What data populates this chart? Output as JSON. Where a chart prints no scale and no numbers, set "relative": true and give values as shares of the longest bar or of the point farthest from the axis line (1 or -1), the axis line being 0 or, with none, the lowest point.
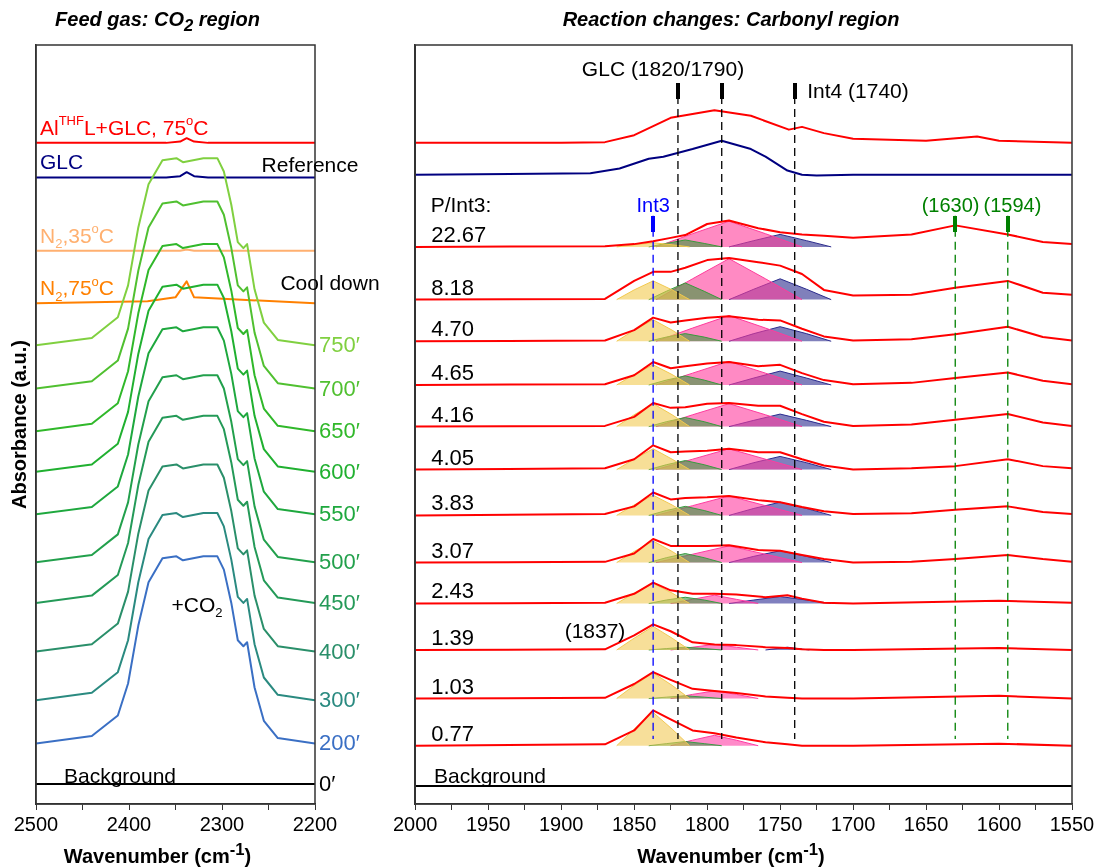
{
  "chart_data": [
    {
      "type": "line",
      "relative": true,
      "title": "Feed gas: CO$_{2}$ region",
      "xlabel": "Wavenumber (cm$^{-1}$)",
      "ylabel": "Absorbance (a.u.)",
      "xlim": [
        2500,
        2200
      ],
      "xticks": [
        2500,
        {
          "value": 2450,
          "label": null
        },
        2400,
        {
          "value": 2350,
          "label": null
        },
        2300,
        {
          "value": 2250,
          "label": null
        },
        2200
      ],
      "annotations": [
        "Reference",
        "Cool down",
        "+CO$_{2}$",
        "Background"
      ],
      "series": [
        {
          "type": "line",
          "name": "0′",
          "color": "#000000",
          "x": [
            2500,
            2200
          ],
          "values": [
            0.03,
            0.03
          ]
        },
        {
          "type": "line",
          "name": "200′",
          "color": "#3a6fc4",
          "x": [
            2500,
            2440,
            2412,
            2401,
            2390,
            2379,
            2364,
            2349,
            2342,
            2320,
            2305,
            2298,
            2290,
            2283,
            2277,
            2273,
            2265,
            2255,
            2240,
            2200
          ],
          "values": [
            0.091,
            0.102,
            0.133,
            0.181,
            0.268,
            0.333,
            0.369,
            0.372,
            0.366,
            0.372,
            0.372,
            0.352,
            0.302,
            0.246,
            0.237,
            0.243,
            0.175,
            0.125,
            0.099,
            0.091
          ]
        },
        {
          "type": "line",
          "name": "300′",
          "color": "#2a8a80",
          "x": [
            2500,
            2440,
            2412,
            2401,
            2390,
            2379,
            2364,
            2349,
            2342,
            2320,
            2305,
            2298,
            2290,
            2283,
            2277,
            2273,
            2265,
            2255,
            2240,
            2200
          ],
          "values": [
            0.156,
            0.167,
            0.198,
            0.246,
            0.333,
            0.398,
            0.434,
            0.437,
            0.431,
            0.437,
            0.437,
            0.417,
            0.367,
            0.311,
            0.302,
            0.308,
            0.24,
            0.19,
            0.164,
            0.156
          ]
        },
        {
          "type": "line",
          "name": "400′",
          "color": "#2a8f6a",
          "x": [
            2500,
            2440,
            2412,
            2401,
            2390,
            2379,
            2364,
            2349,
            2342,
            2320,
            2305,
            2298,
            2290,
            2283,
            2277,
            2273,
            2265,
            2255,
            2240,
            2200
          ],
          "values": [
            0.229,
            0.24,
            0.271,
            0.319,
            0.406,
            0.471,
            0.507,
            0.51,
            0.504,
            0.51,
            0.51,
            0.49,
            0.44,
            0.384,
            0.375,
            0.381,
            0.313,
            0.263,
            0.237,
            0.229
          ]
        },
        {
          "type": "line",
          "name": "450′",
          "color": "#249a58",
          "x": [
            2500,
            2440,
            2412,
            2401,
            2390,
            2379,
            2364,
            2349,
            2342,
            2320,
            2305,
            2298,
            2290,
            2283,
            2277,
            2273,
            2265,
            2255,
            2240,
            2200
          ],
          "values": [
            0.302,
            0.313,
            0.344,
            0.392,
            0.479,
            0.544,
            0.58,
            0.583,
            0.577,
            0.583,
            0.583,
            0.563,
            0.513,
            0.457,
            0.448,
            0.454,
            0.386,
            0.336,
            0.31,
            0.302
          ]
        },
        {
          "type": "line",
          "name": "500′",
          "color": "#22a04c",
          "x": [
            2500,
            2440,
            2412,
            2401,
            2390,
            2379,
            2364,
            2349,
            2342,
            2320,
            2305,
            2298,
            2290,
            2283,
            2277,
            2273,
            2265,
            2255,
            2240,
            2200
          ],
          "values": [
            0.363,
            0.374,
            0.405,
            0.453,
            0.54,
            0.605,
            0.641,
            0.644,
            0.638,
            0.644,
            0.644,
            0.624,
            0.574,
            0.518,
            0.509,
            0.515,
            0.447,
            0.397,
            0.371,
            0.363
          ]
        },
        {
          "type": "line",
          "name": "550′",
          "color": "#1ea83e",
          "x": [
            2500,
            2440,
            2412,
            2401,
            2390,
            2379,
            2364,
            2349,
            2342,
            2320,
            2305,
            2298,
            2290,
            2283,
            2277,
            2273,
            2265,
            2255,
            2240,
            2200
          ],
          "values": [
            0.435,
            0.446,
            0.477,
            0.525,
            0.612,
            0.677,
            0.713,
            0.716,
            0.71,
            0.716,
            0.716,
            0.696,
            0.646,
            0.59,
            0.581,
            0.587,
            0.519,
            0.469,
            0.443,
            0.435
          ]
        },
        {
          "type": "line",
          "name": "600′",
          "color": "#20b030",
          "x": [
            2500,
            2440,
            2412,
            2401,
            2390,
            2379,
            2364,
            2349,
            2342,
            2320,
            2305,
            2298,
            2290,
            2283,
            2277,
            2273,
            2265,
            2255,
            2240,
            2200
          ],
          "values": [
            0.499,
            0.51,
            0.541,
            0.589,
            0.676,
            0.741,
            0.777,
            0.78,
            0.774,
            0.78,
            0.78,
            0.76,
            0.71,
            0.654,
            0.645,
            0.651,
            0.583,
            0.533,
            0.507,
            0.499
          ]
        },
        {
          "type": "line",
          "name": "650′",
          "color": "#30b82a",
          "x": [
            2500,
            2440,
            2412,
            2401,
            2390,
            2379,
            2364,
            2349,
            2342,
            2320,
            2305,
            2298,
            2290,
            2283,
            2277,
            2273,
            2265,
            2255,
            2240,
            2200
          ],
          "values": [
            0.56,
            0.571,
            0.602,
            0.65,
            0.737,
            0.802,
            0.838,
            0.841,
            0.835,
            0.841,
            0.841,
            0.821,
            0.771,
            0.715,
            0.706,
            0.712,
            0.644,
            0.594,
            0.568,
            0.56
          ]
        },
        {
          "type": "line",
          "name": "700′",
          "color": "#50c030",
          "x": [
            2500,
            2440,
            2412,
            2401,
            2390,
            2379,
            2364,
            2349,
            2342,
            2320,
            2305,
            2298,
            2290,
            2283,
            2277,
            2273,
            2265,
            2255,
            2240,
            2200
          ],
          "values": [
            0.624,
            0.635,
            0.666,
            0.714,
            0.801,
            0.866,
            0.902,
            0.905,
            0.899,
            0.905,
            0.905,
            0.885,
            0.835,
            0.779,
            0.77,
            0.776,
            0.708,
            0.658,
            0.632,
            0.624
          ]
        },
        {
          "type": "line",
          "name": "750′",
          "color": "#80d040",
          "x": [
            2500,
            2440,
            2412,
            2401,
            2390,
            2379,
            2364,
            2349,
            2342,
            2320,
            2305,
            2298,
            2290,
            2283,
            2277,
            2273,
            2265,
            2255,
            2240,
            2200
          ],
          "values": [
            0.689,
            0.7,
            0.731,
            0.779,
            0.866,
            0.931,
            0.967,
            0.97,
            0.964,
            0.97,
            0.97,
            0.95,
            0.9,
            0.844,
            0.835,
            0.841,
            0.773,
            0.723,
            0.697,
            0.689
          ]
        },
        {
          "type": "line",
          "name": "N$_{2}$,75$^{o}$C",
          "color": "#ff8000",
          "x": [
            2500,
            2380,
            2350,
            2338,
            2330,
            2200
          ],
          "values": [
            0.752,
            0.755,
            0.761,
            0.785,
            0.761,
            0.752
          ]
        },
        {
          "type": "line",
          "name": "N$_{2}$,35$^{o}$C",
          "color": "#ffb070",
          "x": [
            2500,
            2345,
            2338,
            2330,
            2200
          ],
          "values": [
            0.831,
            0.831,
            0.833,
            0.831,
            0.831
          ]
        },
        {
          "type": "line",
          "name": "GLC",
          "color": "#000080",
          "x": [
            2500,
            2360,
            2345,
            2338,
            2330,
            2315,
            2200
          ],
          "values": [
            0.941,
            0.941,
            0.943,
            0.949,
            0.943,
            0.941,
            0.941
          ]
        },
        {
          "type": "line",
          "name": "Al$^{THF}$L+GLC, 75$^{o}$C",
          "color": "#ff0000",
          "x": [
            2500,
            2360,
            2345,
            2338,
            2330,
            2315,
            2200
          ],
          "values": [
            0.993,
            0.993,
            0.995,
            1,
            0.995,
            0.993,
            0.993
          ]
        }
      ]
    },
    {
      "type": "line",
      "relative": true,
      "title": "Reaction changes: Carbonyl region",
      "xlabel": "Wavenumber (cm$^{-1}$)",
      "xlim": [
        2000,
        1550
      ],
      "xticks": [
        2000,
        {
          "value": 1975,
          "label": null
        },
        1950,
        {
          "value": 1925,
          "label": null
        },
        1900,
        {
          "value": 1875,
          "label": null
        },
        1850,
        {
          "value": 1825,
          "label": null
        },
        1800,
        {
          "value": 1775,
          "label": null
        },
        1750,
        {
          "value": 1725,
          "label": null
        },
        1700,
        {
          "value": 1675,
          "label": null
        },
        1650,
        {
          "value": 1625,
          "label": null
        },
        1600,
        {
          "value": 1575,
          "label": null
        },
        1550
      ],
      "ref_lines": [
        {
          "axis": "x",
          "value": 1837,
          "label": "Int3",
          "color": "#0000ff",
          "line_style": "dashed"
        },
        {
          "axis": "x",
          "value": 1820,
          "color": "#000000",
          "line_style": "dashed"
        },
        {
          "axis": "x",
          "value": 1790,
          "color": "#000000",
          "line_style": "dashed"
        },
        {
          "axis": "x",
          "value": 1740,
          "color": "#000000",
          "line_style": "dashed"
        },
        {
          "axis": "x",
          "value": 1630,
          "label": "(1630)",
          "color": "#008000",
          "line_style": "dashed"
        },
        {
          "axis": "x",
          "value": 1594,
          "label": "(1594)",
          "color": "#008000",
          "line_style": "dashed"
        }
      ],
      "annotations": [
        "GLC (1820/1790)",
        "Int4 (1740)",
        "P/Int3:",
        "(1837)",
        "Background"
      ],
      "series": [
        {
          "type": "line",
          "color": "#ff0000",
          "x": [
            2000,
            1900,
            1870,
            1850,
            1825,
            1795,
            1770,
            1744,
            1735,
            1720,
            1700,
            1650,
            1615,
            1600,
            1550
          ],
          "values": [
            0.953,
            0.953,
            0.954,
            0.964,
            0.989,
            1,
            0.992,
            0.972,
            0.976,
            0.967,
            0.959,
            0.956,
            0.962,
            0.956,
            0.953
          ]
        },
        {
          "type": "line",
          "color": "#000080",
          "x": [
            2000,
            1880,
            1860,
            1840,
            1830,
            1810,
            1790,
            1770,
            1760,
            1745,
            1735,
            1725,
            1700,
            1550
          ],
          "values": [
            0.907,
            0.909,
            0.916,
            0.93,
            0.933,
            0.944,
            0.956,
            0.944,
            0.933,
            0.913,
            0.907,
            0.906,
            0.907,
            0.907
          ]
        },
        {
          "type": "area",
          "color": "#f2c94c",
          "x": [
            1862,
            1850,
            1837,
            1824,
            1812
          ],
          "values": [
            0.803,
            0.806,
            0.809,
            0.806,
            0.803
          ]
        },
        {
          "type": "area",
          "color": "#3a9a3a",
          "x": [
            1840,
            1828,
            1815,
            1802,
            1790
          ],
          "values": [
            0.803,
            0.808,
            0.813,
            0.808,
            0.803
          ]
        },
        {
          "type": "area",
          "color": "#ff3c9a",
          "x": [
            1835,
            1810,
            1785,
            1760,
            1735
          ],
          "values": [
            0.803,
            0.822,
            0.84,
            0.822,
            0.803
          ]
        },
        {
          "type": "area",
          "color": "#2b2b8c",
          "x": [
            1785,
            1768,
            1750,
            1732,
            1715
          ],
          "values": [
            0.803,
            0.812,
            0.821,
            0.812,
            0.803
          ]
        },
        {
          "type": "area",
          "color": "#f2c94d",
          "x": [
            1862,
            1850,
            1837,
            1824,
            1812
          ],
          "values": [
            0.727,
            0.741,
            0.754,
            0.741,
            0.727
          ]
        },
        {
          "type": "area",
          "color": "#3a9a3b",
          "x": [
            1840,
            1828,
            1815,
            1802,
            1790
          ],
          "values": [
            0.727,
            0.739,
            0.751,
            0.739,
            0.727
          ]
        },
        {
          "type": "area",
          "color": "#ff3c9b",
          "x": [
            1835,
            1810,
            1785,
            1760,
            1735
          ],
          "values": [
            0.727,
            0.757,
            0.786,
            0.757,
            0.727
          ]
        },
        {
          "type": "area",
          "color": "#2b2b8d",
          "x": [
            1785,
            1768,
            1750,
            1732,
            1715
          ],
          "values": [
            0.727,
            0.742,
            0.757,
            0.742,
            0.727
          ]
        },
        {
          "type": "area",
          "color": "#f2c94e",
          "x": [
            1862,
            1850,
            1837,
            1824,
            1812
          ],
          "values": [
            0.667,
            0.683,
            0.698,
            0.683,
            0.667
          ]
        },
        {
          "type": "area",
          "color": "#3a9a3c",
          "x": [
            1840,
            1828,
            1815,
            1802,
            1790
          ],
          "values": [
            0.667,
            0.673,
            0.678,
            0.673,
            0.667
          ]
        },
        {
          "type": "area",
          "color": "#ff3c9c",
          "x": [
            1835,
            1810,
            1785,
            1760,
            1735
          ],
          "values": [
            0.667,
            0.686,
            0.704,
            0.686,
            0.667
          ]
        },
        {
          "type": "area",
          "color": "#2b2b8e",
          "x": [
            1785,
            1768,
            1750,
            1732,
            1715
          ],
          "values": [
            0.667,
            0.678,
            0.688,
            0.678,
            0.667
          ]
        },
        {
          "type": "area",
          "color": "#f2c94f",
          "x": [
            1862,
            1850,
            1837,
            1824,
            1812
          ],
          "values": [
            0.604,
            0.619,
            0.633,
            0.619,
            0.604
          ]
        },
        {
          "type": "area",
          "color": "#3a9a3d",
          "x": [
            1840,
            1828,
            1815,
            1802,
            1790
          ],
          "values": [
            0.604,
            0.611,
            0.617,
            0.611,
            0.604
          ]
        },
        {
          "type": "area",
          "color": "#ff3c9d",
          "x": [
            1835,
            1810,
            1785,
            1760,
            1735
          ],
          "values": [
            0.604,
            0.621,
            0.638,
            0.621,
            0.604
          ]
        },
        {
          "type": "area",
          "color": "#2b2b8f",
          "x": [
            1785,
            1768,
            1750,
            1732,
            1715
          ],
          "values": [
            0.604,
            0.614,
            0.624,
            0.614,
            0.604
          ]
        },
        {
          "type": "area",
          "color": "#f2c950",
          "x": [
            1862,
            1850,
            1837,
            1824,
            1812
          ],
          "values": [
            0.544,
            0.561,
            0.577,
            0.561,
            0.544
          ]
        },
        {
          "type": "area",
          "color": "#3a9a3e",
          "x": [
            1840,
            1828,
            1815,
            1802,
            1790
          ],
          "values": [
            0.544,
            0.551,
            0.557,
            0.551,
            0.544
          ]
        },
        {
          "type": "area",
          "color": "#ff3c9e",
          "x": [
            1835,
            1810,
            1785,
            1760,
            1735
          ],
          "values": [
            0.544,
            0.561,
            0.577,
            0.561,
            0.544
          ]
        },
        {
          "type": "area",
          "color": "#2b2b90",
          "x": [
            1785,
            1768,
            1750,
            1732,
            1715
          ],
          "values": [
            0.544,
            0.553,
            0.562,
            0.553,
            0.544
          ]
        },
        {
          "type": "area",
          "color": "#f2c951",
          "x": [
            1862,
            1850,
            1837,
            1824,
            1812
          ],
          "values": [
            0.482,
            0.497,
            0.512,
            0.497,
            0.482
          ]
        },
        {
          "type": "area",
          "color": "#3a9a3f",
          "x": [
            1840,
            1828,
            1815,
            1802,
            1790
          ],
          "values": [
            0.482,
            0.489,
            0.495,
            0.489,
            0.482
          ]
        },
        {
          "type": "area",
          "color": "#ff3c9f",
          "x": [
            1835,
            1810,
            1785,
            1760,
            1735
          ],
          "values": [
            0.482,
            0.497,
            0.512,
            0.497,
            0.482
          ]
        },
        {
          "type": "area",
          "color": "#2b2b91",
          "x": [
            1785,
            1768,
            1750,
            1732,
            1715
          ],
          "values": [
            0.482,
            0.492,
            0.501,
            0.492,
            0.482
          ]
        },
        {
          "type": "area",
          "color": "#f2c952",
          "x": [
            1862,
            1850,
            1837,
            1824,
            1812
          ],
          "values": [
            0.416,
            0.431,
            0.445,
            0.431,
            0.416
          ]
        },
        {
          "type": "area",
          "color": "#3a9a40",
          "x": [
            1840,
            1828,
            1815,
            1802,
            1790
          ],
          "values": [
            0.416,
            0.423,
            0.429,
            0.423,
            0.416
          ]
        },
        {
          "type": "area",
          "color": "#ff3ca0",
          "x": [
            1835,
            1810,
            1785,
            1760,
            1735
          ],
          "values": [
            0.416,
            0.43,
            0.444,
            0.43,
            0.416
          ]
        },
        {
          "type": "area",
          "color": "#2b2b92",
          "x": [
            1785,
            1768,
            1750,
            1732,
            1715
          ],
          "values": [
            0.416,
            0.426,
            0.435,
            0.426,
            0.416
          ]
        },
        {
          "type": "area",
          "color": "#f2c953",
          "x": [
            1862,
            1850,
            1837,
            1824,
            1812
          ],
          "values": [
            0.348,
            0.364,
            0.379,
            0.364,
            0.348
          ]
        },
        {
          "type": "area",
          "color": "#3a9a41",
          "x": [
            1840,
            1828,
            1815,
            1802,
            1790
          ],
          "values": [
            0.348,
            0.355,
            0.361,
            0.355,
            0.348
          ]
        },
        {
          "type": "area",
          "color": "#ff3ca1",
          "x": [
            1835,
            1810,
            1785,
            1760,
            1735
          ],
          "values": [
            0.348,
            0.36,
            0.372,
            0.36,
            0.348
          ]
        },
        {
          "type": "area",
          "color": "#2b2b93",
          "x": [
            1785,
            1768,
            1750,
            1732,
            1715
          ],
          "values": [
            0.348,
            0.357,
            0.365,
            0.357,
            0.348
          ]
        },
        {
          "type": "area",
          "color": "#f2c954",
          "x": [
            1862,
            1850,
            1837,
            1824,
            1812
          ],
          "values": [
            0.289,
            0.304,
            0.318,
            0.304,
            0.289
          ]
        },
        {
          "type": "area",
          "color": "#3a9a42",
          "x": [
            1840,
            1828,
            1815,
            1802,
            1790
          ],
          "values": [
            0.289,
            0.294,
            0.298,
            0.294,
            0.289
          ]
        },
        {
          "type": "area",
          "color": "#ff3ca2",
          "x": [
            1825,
            1810,
            1795,
            1780,
            1765
          ],
          "values": [
            0.289,
            0.295,
            0.301,
            0.295,
            0.289
          ]
        },
        {
          "type": "area",
          "color": "#2b2b94",
          "x": [
            1785,
            1768,
            1750,
            1732,
            1715
          ],
          "values": [
            0.289,
            0.294,
            0.299,
            0.294,
            0.289
          ]
        },
        {
          "type": "area",
          "color": "#f2c955",
          "x": [
            1862,
            1850,
            1837,
            1824,
            1812
          ],
          "values": [
            0.222,
            0.239,
            0.256,
            0.239,
            0.222
          ]
        },
        {
          "type": "area",
          "color": "#3a9a43",
          "x": [
            1840,
            1828,
            1815,
            1802,
            1790
          ],
          "values": [
            0.222,
            0.224,
            0.226,
            0.224,
            0.222
          ]
        },
        {
          "type": "area",
          "color": "#ff3ca3",
          "x": [
            1825,
            1810,
            1795,
            1780,
            1765
          ],
          "values": [
            0.222,
            0.226,
            0.23,
            0.226,
            0.222
          ]
        },
        {
          "type": "area",
          "color": "#2b2b95",
          "x": [
            1760,
            1752,
            1745,
            1738,
            1730
          ],
          "values": [
            0.222,
            0.224,
            0.226,
            0.224,
            0.222
          ]
        },
        {
          "type": "area",
          "color": "#f2c956",
          "x": [
            1862,
            1850,
            1837,
            1824,
            1812
          ],
          "values": [
            0.152,
            0.171,
            0.189,
            0.171,
            0.152
          ]
        },
        {
          "type": "area",
          "color": "#3a9a44",
          "x": [
            1840,
            1828,
            1815,
            1802,
            1790
          ],
          "values": [
            0.152,
            0.154,
            0.156,
            0.154,
            0.152
          ]
        },
        {
          "type": "area",
          "color": "#ff3ca4",
          "x": [
            1825,
            1810,
            1795,
            1780,
            1765
          ],
          "values": [
            0.152,
            0.158,
            0.163,
            0.158,
            0.152
          ]
        },
        {
          "type": "area",
          "color": "#f2c957",
          "x": [
            1862,
            1850,
            1837,
            1824,
            1812
          ],
          "values": [
            0.084,
            0.108,
            0.132,
            0.108,
            0.084
          ]
        },
        {
          "type": "area",
          "color": "#3a9a45",
          "x": [
            1840,
            1828,
            1815,
            1802,
            1790
          ],
          "values": [
            0.084,
            0.087,
            0.09,
            0.087,
            0.084
          ]
        },
        {
          "type": "area",
          "color": "#ff3ca5",
          "x": [
            1825,
            1810,
            1795,
            1780,
            1765
          ],
          "values": [
            0.084,
            0.092,
            0.099,
            0.092,
            0.084
          ]
        },
        {
          "type": "line",
          "color": "#ff0000",
          "name": "22.67",
          "x": [
            2000,
            1870,
            1850,
            1837,
            1825,
            1815,
            1800,
            1785,
            1765,
            1750,
            1735,
            1720,
            1700,
            1660,
            1630,
            1594,
            1570,
            1550
          ],
          "values": [
            0.803,
            0.804,
            0.807,
            0.811,
            0.816,
            0.82,
            0.836,
            0.841,
            0.83,
            0.824,
            0.821,
            0.819,
            0.816,
            0.821,
            0.834,
            0.821,
            0.81,
            0.807
          ]
        },
        {
          "type": "line",
          "color": "#ff0000",
          "name": "8.18",
          "x": [
            2000,
            1870,
            1850,
            1837,
            1825,
            1815,
            1800,
            1785,
            1765,
            1750,
            1735,
            1720,
            1700,
            1660,
            1630,
            1594,
            1570,
            1550
          ],
          "values": [
            0.727,
            0.728,
            0.754,
            0.767,
            0.767,
            0.773,
            0.784,
            0.787,
            0.781,
            0.776,
            0.764,
            0.741,
            0.733,
            0.734,
            0.744,
            0.754,
            0.737,
            0.734
          ]
        },
        {
          "type": "line",
          "color": "#ff0000",
          "name": "4.70",
          "x": [
            2000,
            1870,
            1850,
            1837,
            1825,
            1815,
            1800,
            1785,
            1765,
            1750,
            1735,
            1720,
            1700,
            1660,
            1630,
            1594,
            1570,
            1550
          ],
          "values": [
            0.667,
            0.668,
            0.683,
            0.701,
            0.694,
            0.697,
            0.701,
            0.703,
            0.698,
            0.697,
            0.685,
            0.674,
            0.668,
            0.67,
            0.677,
            0.688,
            0.673,
            0.668
          ]
        },
        {
          "type": "line",
          "color": "#ff0000",
          "name": "4.65",
          "x": [
            2000,
            1870,
            1850,
            1837,
            1825,
            1815,
            1800,
            1785,
            1765,
            1750,
            1735,
            1720,
            1700,
            1660,
            1630,
            1594,
            1570,
            1550
          ],
          "values": [
            0.604,
            0.605,
            0.618,
            0.637,
            0.628,
            0.631,
            0.635,
            0.637,
            0.631,
            0.633,
            0.621,
            0.611,
            0.605,
            0.607,
            0.614,
            0.622,
            0.61,
            0.605
          ]
        },
        {
          "type": "line",
          "color": "#ff0000",
          "name": "4.16",
          "x": [
            2000,
            1870,
            1850,
            1837,
            1825,
            1815,
            1800,
            1785,
            1765,
            1750,
            1735,
            1720,
            1700,
            1660,
            1630,
            1594,
            1570,
            1550
          ],
          "values": [
            0.544,
            0.545,
            0.558,
            0.578,
            0.571,
            0.572,
            0.577,
            0.578,
            0.574,
            0.574,
            0.562,
            0.551,
            0.545,
            0.547,
            0.554,
            0.562,
            0.55,
            0.545
          ]
        },
        {
          "type": "line",
          "color": "#ff0000",
          "name": "4.05",
          "x": [
            2000,
            1870,
            1850,
            1837,
            1825,
            1815,
            1800,
            1785,
            1765,
            1750,
            1735,
            1720,
            1700,
            1660,
            1630,
            1594,
            1570,
            1550
          ],
          "values": [
            0.482,
            0.484,
            0.497,
            0.517,
            0.507,
            0.508,
            0.509,
            0.512,
            0.507,
            0.507,
            0.497,
            0.488,
            0.482,
            0.484,
            0.487,
            0.497,
            0.487,
            0.484
          ]
        },
        {
          "type": "line",
          "color": "#ff0000",
          "name": "3.83",
          "x": [
            2000,
            1870,
            1850,
            1837,
            1825,
            1815,
            1800,
            1785,
            1765,
            1750,
            1735,
            1720,
            1700,
            1660,
            1630,
            1594,
            1570,
            1550
          ],
          "values": [
            0.416,
            0.418,
            0.429,
            0.449,
            0.439,
            0.441,
            0.442,
            0.444,
            0.438,
            0.435,
            0.428,
            0.422,
            0.418,
            0.419,
            0.424,
            0.429,
            0.421,
            0.418
          ]
        },
        {
          "type": "line",
          "color": "#ff0000",
          "name": "3.07",
          "x": [
            2000,
            1870,
            1850,
            1837,
            1825,
            1815,
            1800,
            1785,
            1765,
            1750,
            1735,
            1720,
            1700,
            1660,
            1630,
            1594,
            1570,
            1550
          ],
          "values": [
            0.348,
            0.349,
            0.361,
            0.382,
            0.372,
            0.372,
            0.372,
            0.373,
            0.366,
            0.365,
            0.359,
            0.353,
            0.348,
            0.349,
            0.353,
            0.359,
            0.353,
            0.349
          ]
        },
        {
          "type": "line",
          "color": "#ff0000",
          "name": "2.43",
          "x": [
            2000,
            1870,
            1850,
            1837,
            1825,
            1810,
            1795,
            1780,
            1760,
            1745,
            1735,
            1720,
            1700,
            1600,
            1550
          ],
          "values": [
            0.289,
            0.29,
            0.303,
            0.319,
            0.308,
            0.303,
            0.303,
            0.302,
            0.298,
            0.301,
            0.296,
            0.29,
            0.289,
            0.293,
            0.29
          ]
        },
        {
          "type": "line",
          "color": "#ff0000",
          "name": "1.39",
          "x": [
            2000,
            1870,
            1850,
            1837,
            1825,
            1810,
            1795,
            1780,
            1760,
            1745,
            1735,
            1720,
            1700,
            1600,
            1550
          ],
          "values": [
            0.222,
            0.223,
            0.243,
            0.259,
            0.249,
            0.233,
            0.23,
            0.229,
            0.226,
            0.225,
            0.223,
            0.222,
            0.222,
            0.225,
            0.222
          ]
        },
        {
          "type": "line",
          "color": "#ff0000",
          "name": "1.03",
          "x": [
            2000,
            1870,
            1850,
            1837,
            1825,
            1810,
            1795,
            1780,
            1760,
            1745,
            1735,
            1720,
            1700,
            1600,
            1550
          ],
          "values": [
            0.152,
            0.153,
            0.173,
            0.19,
            0.179,
            0.166,
            0.163,
            0.16,
            0.155,
            0.153,
            0.152,
            0.152,
            0.152,
            0.156,
            0.152
          ]
        },
        {
          "type": "line",
          "color": "#ff0000",
          "name": "0.77",
          "x": [
            2000,
            1870,
            1850,
            1837,
            1825,
            1810,
            1795,
            1780,
            1760,
            1745,
            1735,
            1720,
            1700,
            1600,
            1550
          ],
          "values": [
            0.084,
            0.086,
            0.106,
            0.135,
            0.122,
            0.106,
            0.102,
            0.096,
            0.089,
            0.086,
            0.084,
            0.084,
            0.084,
            0.087,
            0.084
          ]
        },
        {
          "type": "line",
          "color": "#000000",
          "x": [
            2000,
            1550
          ],
          "values": [
            0.026,
            0.026
          ]
        }
      ]
    }
  ]
}
